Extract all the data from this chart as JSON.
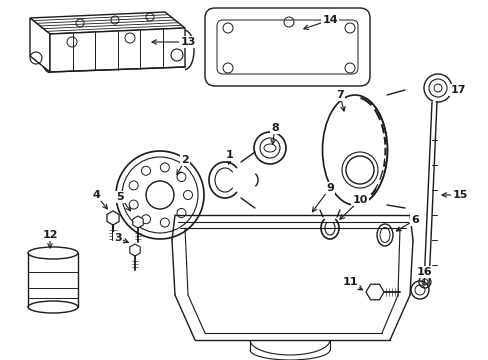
{
  "background_color": "#ffffff",
  "line_color": "#1a1a1a",
  "figsize": [
    4.89,
    3.6
  ],
  "dpi": 100,
  "xlim": [
    0,
    489
  ],
  "ylim": [
    0,
    360
  ]
}
